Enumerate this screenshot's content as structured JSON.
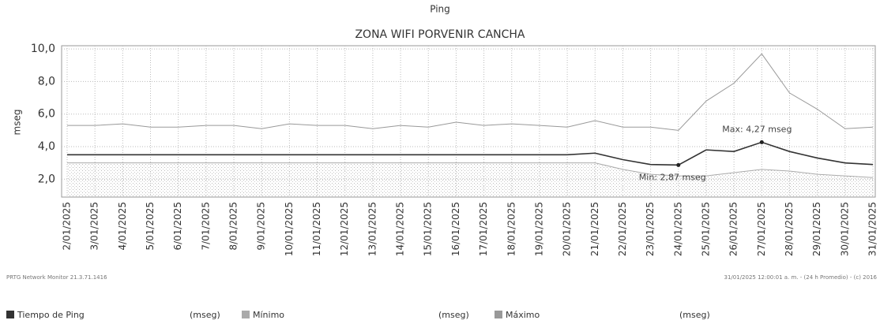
{
  "chart_data": {
    "type": "line",
    "title": "Ping",
    "subtitle": "ZONA WIFI PORVENIR CANCHA",
    "y_label": "mseg",
    "categories": [
      "2/01/2025",
      "3/01/2025",
      "4/01/2025",
      "5/01/2025",
      "6/01/2025",
      "7/01/2025",
      "8/01/2025",
      "9/01/2025",
      "10/01/2025",
      "11/01/2025",
      "12/01/2025",
      "13/01/2025",
      "14/01/2025",
      "15/01/2025",
      "16/01/2025",
      "17/01/2025",
      "18/01/2025",
      "19/01/2025",
      "20/01/2025",
      "21/01/2025",
      "22/01/2025",
      "23/01/2025",
      "24/01/2025",
      "25/01/2025",
      "26/01/2025",
      "27/01/2025",
      "28/01/2025",
      "29/01/2025",
      "30/01/2025",
      "31/01/2025"
    ],
    "series": [
      {
        "name": "Tiempo de Ping",
        "unit": "(mseg)",
        "color": "#333333",
        "values": [
          3.5,
          3.5,
          3.5,
          3.5,
          3.5,
          3.5,
          3.5,
          3.5,
          3.5,
          3.5,
          3.5,
          3.5,
          3.5,
          3.5,
          3.5,
          3.5,
          3.5,
          3.5,
          3.5,
          3.6,
          3.2,
          2.9,
          2.87,
          3.8,
          3.7,
          4.27,
          3.7,
          3.3,
          3.0,
          2.9
        ]
      },
      {
        "name": "Mínimo",
        "unit": "(mseg)",
        "color": "#aaaaaa",
        "values": [
          3.0,
          3.0,
          3.0,
          3.0,
          3.0,
          3.0,
          3.0,
          3.0,
          3.0,
          3.0,
          3.0,
          3.0,
          3.0,
          3.0,
          3.0,
          3.0,
          3.0,
          3.0,
          3.0,
          3.0,
          2.6,
          2.3,
          2.2,
          2.2,
          2.4,
          2.6,
          2.5,
          2.3,
          2.2,
          2.1
        ]
      },
      {
        "name": "Máximo",
        "unit": "(mseg)",
        "color": "#999999",
        "values": [
          5.3,
          5.3,
          5.4,
          5.2,
          5.2,
          5.3,
          5.3,
          5.1,
          5.4,
          5.3,
          5.3,
          5.1,
          5.3,
          5.2,
          5.5,
          5.3,
          5.4,
          5.3,
          5.2,
          5.6,
          5.2,
          5.2,
          5.0,
          6.8,
          7.9,
          9.7,
          7.3,
          6.3,
          5.1,
          5.2
        ]
      }
    ],
    "annotations": [
      "Max: 4,27 mseg",
      "Min: 2,87 mseg"
    ],
    "footer_left": "PRTG Network Monitor 21.3.71.1416",
    "footer_right": "31/01/2025 12:00:01 a. m. - (24 h Promedio) - (c) 2016",
    "ylim": [
      0.9,
      10.2
    ],
    "yticks": [
      {
        "value": 10,
        "label": "10,0"
      },
      {
        "value": 8,
        "label": "8,0"
      },
      {
        "value": 6,
        "label": "6,0"
      },
      {
        "value": 4,
        "label": "4,0"
      },
      {
        "value": 2,
        "label": "2,0"
      }
    ],
    "grid": true
  }
}
